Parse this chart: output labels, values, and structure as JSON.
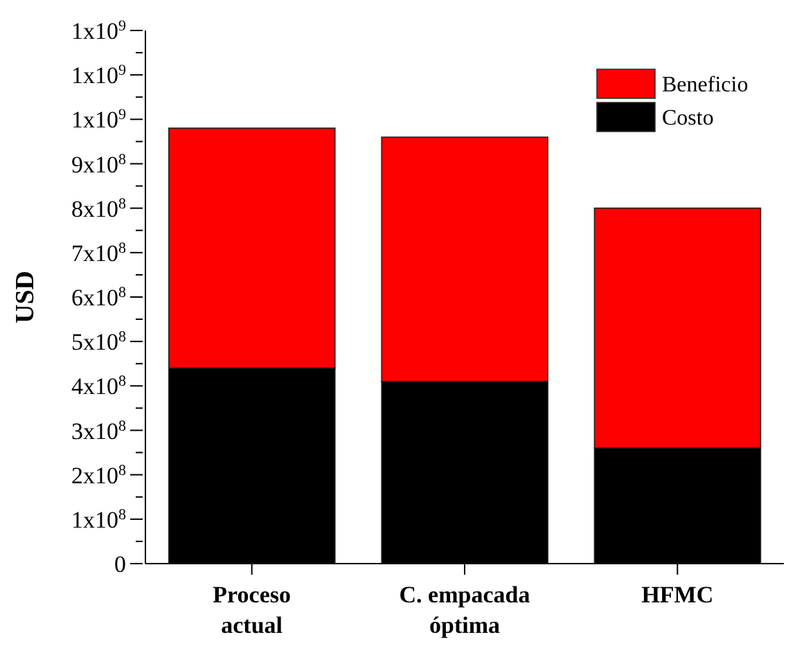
{
  "chart_data": {
    "type": "bar",
    "stacked": true,
    "ylabel": "USD",
    "categories": [
      "Proceso actual",
      "C. empacada óptima",
      "HFMC"
    ],
    "series": [
      {
        "name": "Costo",
        "color": "#000000",
        "values": [
          440000000.0,
          410000000.0,
          260000000.0
        ]
      },
      {
        "name": "Beneficio",
        "color": "#ff0000",
        "values": [
          540000000.0,
          550000000.0,
          540000000.0
        ]
      }
    ],
    "ylim": [
      0,
      1200000000.0
    ],
    "yticks": [
      0,
      {
        "value": 50000000.0,
        "label": null
      },
      {
        "value": 100000000.0,
        "label": "1x10$^{8}$"
      },
      {
        "value": 150000000.0,
        "label": null
      },
      {
        "value": 200000000.0,
        "label": "2x10$^{8}$"
      },
      {
        "value": 250000000.0,
        "label": null
      },
      {
        "value": 300000000.0,
        "label": "3x10$^{8}$"
      },
      {
        "value": 350000000.0,
        "label": null
      },
      {
        "value": 400000000.0,
        "label": "4x10$^{8}$"
      },
      {
        "value": 450000000.0,
        "label": null
      },
      {
        "value": 500000000.0,
        "label": "5x10$^{8}$"
      },
      {
        "value": 550000000.0,
        "label": null
      },
      {
        "value": 600000000.0,
        "label": "6x10$^{8}$"
      },
      {
        "value": 650000000.0,
        "label": null
      },
      {
        "value": 700000000.0,
        "label": "7x10$^{8}$"
      },
      {
        "value": 750000000.0,
        "label": null
      },
      {
        "value": 800000000.0,
        "label": "8x10$^{8}$"
      },
      {
        "value": 850000000.0,
        "label": null
      },
      {
        "value": 900000000.0,
        "label": "9x10$^{8}$"
      },
      {
        "value": 950000000.0,
        "label": null
      },
      {
        "value": 1000000000.0,
        "label": "1x10$^{9}$"
      },
      {
        "value": 1050000000.0,
        "label": null
      },
      {
        "value": 1100000000.0,
        "label": "1x10$^{9}$"
      },
      {
        "value": 1150000000.0,
        "label": null
      },
      {
        "value": 1200000000.0,
        "label": "1x10$^{9}$"
      }
    ],
    "legend": "top right",
    "grid": false
  }
}
